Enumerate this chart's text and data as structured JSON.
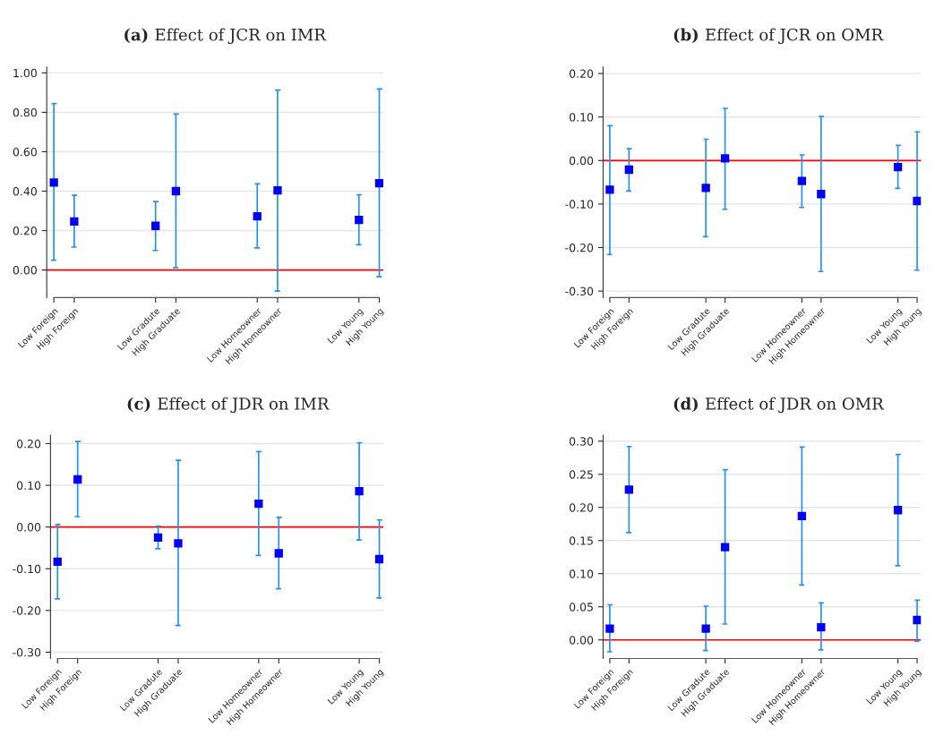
{
  "chart_data": [
    {
      "type": "scatter",
      "title": "(a) Effect of JCR on IMR",
      "categories": [
        "Low Foreign",
        "High Foreign",
        null,
        null,
        null,
        "Low Gradute",
        "High Graduate",
        null,
        null,
        null,
        "Low Homeowner",
        "High Homeowner",
        null,
        null,
        null,
        "Low Young",
        "High Young"
      ],
      "series": [
        {
          "color": "#0000ff",
          "values": [
            0.444,
            0.246,
            null,
            null,
            null,
            0.224,
            0.4,
            null,
            null,
            null,
            0.272,
            0.404,
            null,
            null,
            null,
            0.254,
            0.44
          ],
          "errors": [
            [
              0.049,
              0.844
            ],
            [
              0.116,
              0.379
            ],
            null,
            null,
            null,
            [
              0.099,
              0.347
            ],
            [
              0.012,
              0.791
            ],
            null,
            null,
            null,
            [
              0.112,
              0.437
            ],
            [
              -0.107,
              0.913
            ],
            null,
            null,
            null,
            [
              0.128,
              0.382
            ],
            [
              -0.034,
              0.918
            ]
          ]
        }
      ],
      "ylim": [
        -0.14,
        1.03
      ],
      "yticks": [
        {
          "value": 0,
          "label": "0.00"
        },
        {
          "value": 0.2,
          "label": "0.20"
        },
        {
          "value": 0.4,
          "label": "0.40"
        },
        {
          "value": 0.6,
          "label": "0.60"
        },
        {
          "value": 0.8,
          "label": "0.80"
        },
        {
          "value": 1.0,
          "label": "1.00"
        }
      ],
      "ref_lines": [
        {
          "axis": "y",
          "value": 0,
          "color": "#ff0000"
        }
      ],
      "grid": "y",
      "marker": "square"
    },
    {
      "type": "scatter",
      "title": "(b) Effect of JCR on OMR",
      "categories": [
        "Low Foreign",
        "High Foreign",
        null,
        null,
        null,
        "Low Gradute",
        "High Graduate",
        null,
        null,
        null,
        "Low Homeowner",
        "High Homeowner",
        null,
        null,
        null,
        "Low Young",
        "High Young"
      ],
      "series": [
        {
          "color": "#0000ff",
          "values": [
            -0.067,
            -0.021,
            null,
            null,
            null,
            -0.063,
            0.005,
            null,
            null,
            null,
            -0.047,
            -0.077,
            null,
            null,
            null,
            -0.015,
            -0.093
          ],
          "errors": [
            [
              -0.216,
              0.08
            ],
            [
              -0.07,
              0.027
            ],
            null,
            null,
            null,
            [
              -0.175,
              0.049
            ],
            [
              -0.112,
              0.12
            ],
            null,
            null,
            null,
            [
              -0.108,
              0.013
            ],
            [
              -0.255,
              0.101
            ],
            null,
            null,
            null,
            [
              -0.064,
              0.035
            ],
            [
              -0.252,
              0.066
            ]
          ]
        }
      ],
      "ylim": [
        -0.315,
        0.215
      ],
      "yticks": [
        {
          "value": -0.3,
          "label": "-0.30"
        },
        {
          "value": -0.2,
          "label": "-0.20"
        },
        {
          "value": -0.1,
          "label": "-0.10"
        },
        {
          "value": 0,
          "label": "0.00"
        },
        {
          "value": 0.1,
          "label": "0.10"
        },
        {
          "value": 0.2,
          "label": "0.20"
        }
      ],
      "ref_lines": [
        {
          "axis": "y",
          "value": 0,
          "color": "#ff0000"
        }
      ],
      "grid": "y",
      "marker": "square"
    },
    {
      "type": "scatter",
      "title": "(c) Effect of JDR on IMR",
      "categories": [
        "Low Foreign",
        "High Foreign",
        null,
        null,
        null,
        "Low Gradute",
        "High Graduate",
        null,
        null,
        null,
        "Low Homeowner",
        "High Homeowner",
        null,
        null,
        null,
        "Low Young",
        "High Young"
      ],
      "series": [
        {
          "color": "#0000ff",
          "values": [
            -0.083,
            0.114,
            null,
            null,
            null,
            -0.025,
            -0.039,
            null,
            null,
            null,
            0.056,
            -0.063,
            null,
            null,
            null,
            0.086,
            -0.077
          ],
          "errors": [
            [
              -0.172,
              0.006
            ],
            [
              0.025,
              0.205
            ],
            null,
            null,
            null,
            [
              -0.052,
              0.002
            ],
            [
              -0.236,
              0.16
            ],
            null,
            null,
            null,
            [
              -0.068,
              0.181
            ],
            [
              -0.148,
              0.023
            ],
            null,
            null,
            null,
            [
              -0.031,
              0.202
            ],
            [
              -0.17,
              0.017
            ]
          ]
        }
      ],
      "ylim": [
        -0.315,
        0.22
      ],
      "yticks": [
        {
          "value": -0.3,
          "label": "-0.30"
        },
        {
          "value": -0.2,
          "label": "-0.20"
        },
        {
          "value": -0.1,
          "label": "-0.10"
        },
        {
          "value": 0,
          "label": "0.00"
        },
        {
          "value": 0.1,
          "label": "0.10"
        },
        {
          "value": 0.2,
          "label": "0.20"
        }
      ],
      "ref_lines": [
        {
          "axis": "y",
          "value": 0,
          "color": "#ff0000"
        }
      ],
      "grid": "y",
      "marker": "square"
    },
    {
      "type": "scatter",
      "title": "(d) Effect of JDR on OMR",
      "categories": [
        "Low Foreign",
        "High Foreign",
        null,
        null,
        null,
        "Low Gradute",
        "High Graduate",
        null,
        null,
        null,
        "Low Homeowner",
        "High Homeowner",
        null,
        null,
        null,
        "Low Young",
        "High Young"
      ],
      "series": [
        {
          "color": "#0000ff",
          "values": [
            0.017,
            0.227,
            null,
            null,
            null,
            0.017,
            0.14,
            null,
            null,
            null,
            0.187,
            0.019,
            null,
            null,
            null,
            0.196,
            0.03
          ],
          "errors": [
            [
              -0.018,
              0.053
            ],
            [
              0.162,
              0.292
            ],
            null,
            null,
            null,
            [
              -0.016,
              0.051
            ],
            [
              0.024,
              0.257
            ],
            null,
            null,
            null,
            [
              0.083,
              0.291
            ],
            [
              -0.015,
              0.056
            ],
            null,
            null,
            null,
            [
              0.112,
              0.28
            ],
            [
              -0.002,
              0.06
            ]
          ]
        }
      ],
      "ylim": [
        -0.028,
        0.309
      ],
      "yticks": [
        {
          "value": 0,
          "label": "0.00"
        },
        {
          "value": 0.05,
          "label": "0.05"
        },
        {
          "value": 0.1,
          "label": "0.10"
        },
        {
          "value": 0.15,
          "label": "0.15"
        },
        {
          "value": 0.2,
          "label": "0.20"
        },
        {
          "value": 0.25,
          "label": "0.25"
        },
        {
          "value": 0.3,
          "label": "0.30"
        }
      ],
      "ref_lines": [
        {
          "axis": "y",
          "value": 0,
          "color": "#ff0000"
        }
      ],
      "grid": "y",
      "marker": "square"
    }
  ]
}
